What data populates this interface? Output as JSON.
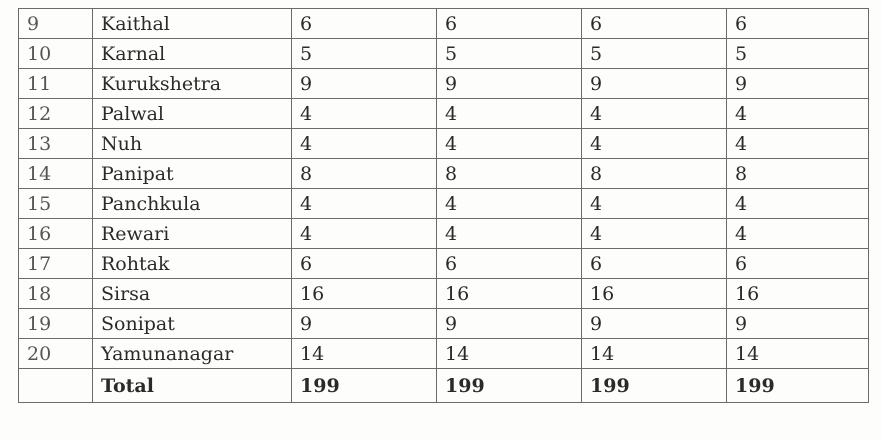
{
  "rows": [
    {
      "sn": "9",
      "district": "Kaithal",
      "c1": "6",
      "c2": "6",
      "c3": "6",
      "c4": "6"
    },
    {
      "sn": "10",
      "district": "Karnal",
      "c1": "5",
      "c2": "5",
      "c3": "5",
      "c4": "5"
    },
    {
      "sn": "11",
      "district": "Kurukshetra",
      "c1": "9",
      "c2": "9",
      "c3": "9",
      "c4": "9"
    },
    {
      "sn": "12",
      "district": "Palwal",
      "c1": "4",
      "c2": "4",
      "c3": "4",
      "c4": "4"
    },
    {
      "sn": "13",
      "district": "Nuh",
      "c1": "4",
      "c2": "4",
      "c3": "4",
      "c4": "4"
    },
    {
      "sn": "14",
      "district": "Panipat",
      "c1": "8",
      "c2": "8",
      "c3": "8",
      "c4": "8"
    },
    {
      "sn": "15",
      "district": "Panchkula",
      "c1": "4",
      "c2": "4",
      "c3": "4",
      "c4": "4"
    },
    {
      "sn": "16",
      "district": "Rewari",
      "c1": "4",
      "c2": "4",
      "c3": "4",
      "c4": "4"
    },
    {
      "sn": "17",
      "district": "Rohtak",
      "c1": "6",
      "c2": "6",
      "c3": "6",
      "c4": "6"
    },
    {
      "sn": "18",
      "district": "Sirsa",
      "c1": "16",
      "c2": "16",
      "c3": "16",
      "c4": "16"
    },
    {
      "sn": "19",
      "district": "Sonipat",
      "c1": "9",
      "c2": "9",
      "c3": "9",
      "c4": "9"
    },
    {
      "sn": "20",
      "district": "Yamunanagar",
      "c1": "14",
      "c2": "14",
      "c3": "14",
      "c4": "14"
    }
  ],
  "total": {
    "label": "Total",
    "c1": "199",
    "c2": "199",
    "c3": "199",
    "c4": "199"
  }
}
